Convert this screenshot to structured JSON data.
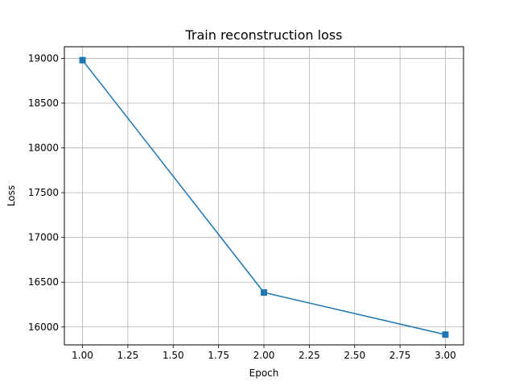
{
  "chart_data": {
    "type": "line",
    "title": "Train reconstruction loss",
    "xlabel": "Epoch",
    "ylabel": "Loss",
    "x": [
      1.0,
      2.0,
      3.0
    ],
    "series": [
      {
        "values": [
          18980,
          16385,
          15915
        ],
        "color": "#1f77b4",
        "marker": "square"
      }
    ],
    "xlim": [
      0.9,
      3.1
    ],
    "ylim": [
      15800,
      19130
    ],
    "xticks": [
      1.0,
      1.25,
      1.5,
      1.75,
      2.0,
      2.25,
      2.5,
      2.75,
      3.0
    ],
    "xtick_labels": [
      "1.00",
      "1.25",
      "1.50",
      "1.75",
      "2.00",
      "2.25",
      "2.50",
      "2.75",
      "3.00"
    ],
    "yticks": [
      16000,
      16500,
      17000,
      17500,
      18000,
      18500,
      19000
    ],
    "ytick_labels": [
      "16000",
      "16500",
      "17000",
      "17500",
      "18000",
      "18500",
      "19000"
    ],
    "grid": true,
    "legend": "none"
  }
}
